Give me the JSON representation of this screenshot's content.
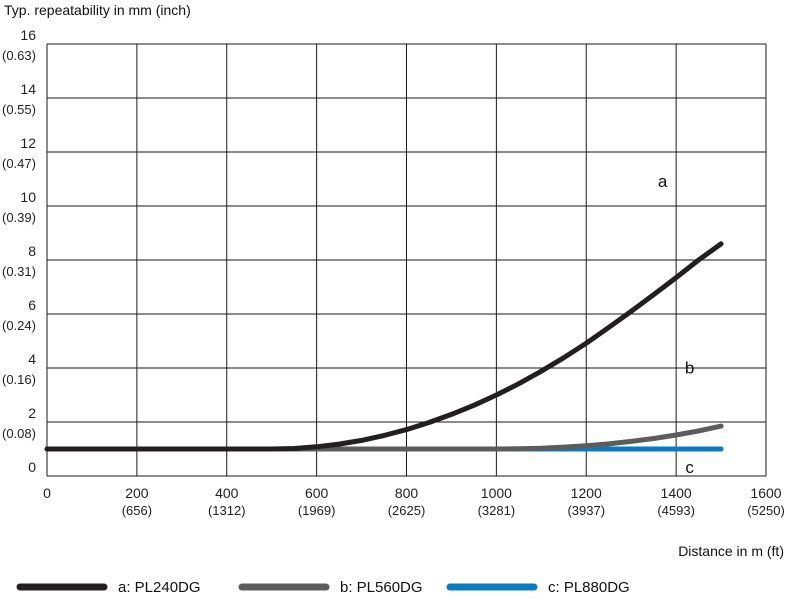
{
  "chart_data": {
    "type": "line",
    "ylabel": "Typ. repeatability in mm (inch)",
    "xlabel": "Distance in m (ft)",
    "xlim": [
      0,
      1600
    ],
    "ylim": [
      0,
      16
    ],
    "grid": true,
    "x_ticks": [
      {
        "value": 0,
        "label": "0",
        "sub": ""
      },
      {
        "value": 200,
        "label": "200",
        "sub": "(656)"
      },
      {
        "value": 400,
        "label": "400",
        "sub": "(1312)"
      },
      {
        "value": 600,
        "label": "600",
        "sub": "(1969)"
      },
      {
        "value": 800,
        "label": "800",
        "sub": "(2625)"
      },
      {
        "value": 1000,
        "label": "1000",
        "sub": "(3281)"
      },
      {
        "value": 1200,
        "label": "1200",
        "sub": "(3937)"
      },
      {
        "value": 1400,
        "label": "1400",
        "sub": "(4593)"
      },
      {
        "value": 1600,
        "label": "1600",
        "sub": "(5250)"
      }
    ],
    "y_ticks": [
      {
        "value": 0,
        "label": "0",
        "sub": ""
      },
      {
        "value": 2,
        "label": "2",
        "sub": "(0.08)"
      },
      {
        "value": 4,
        "label": "4",
        "sub": "(0.16)"
      },
      {
        "value": 6,
        "label": "6",
        "sub": "(0.24)"
      },
      {
        "value": 8,
        "label": "8",
        "sub": "(0.31)"
      },
      {
        "value": 10,
        "label": "10",
        "sub": "(0.39)"
      },
      {
        "value": 12,
        "label": "12",
        "sub": "(0.47)"
      },
      {
        "value": 14,
        "label": "14",
        "sub": "(0.55)"
      },
      {
        "value": 16,
        "label": "16",
        "sub": "(0.63)"
      }
    ],
    "legend_position": "bottom",
    "series": [
      {
        "name": "a: PL240DG",
        "label": "a",
        "color": "#231f20",
        "x": [
          0,
          100,
          200,
          300,
          400,
          500,
          550,
          600,
          650,
          700,
          750,
          800,
          850,
          900,
          950,
          1000,
          1050,
          1100,
          1150,
          1200,
          1250,
          1300,
          1350,
          1400,
          1450,
          1500
        ],
        "y": [
          1.0,
          1.0,
          1.0,
          1.0,
          1.0,
          1.0,
          1.02,
          1.08,
          1.18,
          1.32,
          1.5,
          1.72,
          1.98,
          2.28,
          2.62,
          3.0,
          3.42,
          3.88,
          4.38,
          4.92,
          5.5,
          6.1,
          6.72,
          7.35,
          8.0,
          8.6
        ]
      },
      {
        "name": "b: PL560DG",
        "label": "b",
        "color": "#5c5c5c",
        "x": [
          0,
          200,
          400,
          600,
          800,
          1000,
          1050,
          1100,
          1150,
          1200,
          1250,
          1300,
          1350,
          1400,
          1450,
          1500
        ],
        "y": [
          1.0,
          1.0,
          1.0,
          1.0,
          1.0,
          1.0,
          1.01,
          1.03,
          1.07,
          1.12,
          1.19,
          1.28,
          1.39,
          1.52,
          1.67,
          1.85
        ]
      },
      {
        "name": "c: PL880DG",
        "label": "c",
        "color": "#0a7bc2",
        "x": [
          0,
          1500
        ],
        "y": [
          1.0,
          1.0
        ]
      }
    ]
  }
}
